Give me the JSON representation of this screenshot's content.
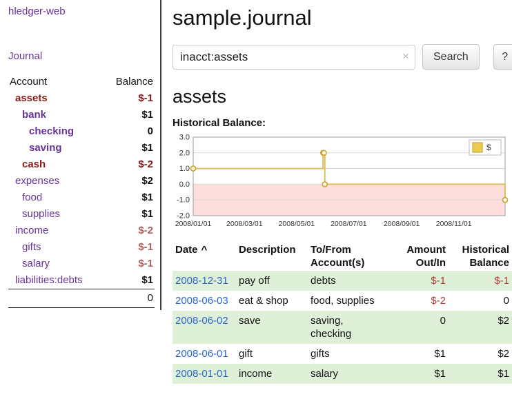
{
  "colors": {
    "purple": "#663399",
    "dark_red": "#8b1a1a",
    "soft_red": "#b05c5c",
    "amount_red": "#b23a3a",
    "link_blue": "#2a66cc",
    "row_green": "#dff0d8",
    "chart_line": "#ddc05a",
    "chart_marker": "#c9a227",
    "chart_swatch": "#eccb4e",
    "chart_neg_fill": "#ffdede"
  },
  "app": {
    "title": "hledger-web"
  },
  "sidebar": {
    "journal_label": "Journal",
    "headers": {
      "account": "Account",
      "balance": "Balance"
    },
    "rows": [
      {
        "account": "assets",
        "balance": "$-1",
        "indent": 0,
        "bold": true,
        "negative": "strong"
      },
      {
        "account": "bank",
        "balance": "$1",
        "indent": 1,
        "bold": true,
        "negative": null
      },
      {
        "account": "checking",
        "balance": "0",
        "indent": 2,
        "bold": true,
        "negative": null
      },
      {
        "account": "saving",
        "balance": "$1",
        "indent": 2,
        "bold": true,
        "negative": null
      },
      {
        "account": "cash",
        "balance": "$-2",
        "indent": 1,
        "bold": true,
        "negative": "strong"
      },
      {
        "account": "expenses",
        "balance": "$2",
        "indent": 0,
        "bold": false,
        "negative": null
      },
      {
        "account": "food",
        "balance": "$1",
        "indent": 1,
        "bold": false,
        "negative": null
      },
      {
        "account": "supplies",
        "balance": "$1",
        "indent": 1,
        "bold": false,
        "negative": null
      },
      {
        "account": "income",
        "balance": "$-2",
        "indent": 0,
        "bold": false,
        "negative": "soft"
      },
      {
        "account": "gifts",
        "balance": "$-1",
        "indent": 1,
        "bold": false,
        "negative": "soft"
      },
      {
        "account": "salary",
        "balance": "$-1",
        "indent": 1,
        "bold": false,
        "negative": "soft"
      },
      {
        "account": "liabilities:debts",
        "balance": "$1",
        "indent": 0,
        "bold": false,
        "negative": null
      }
    ],
    "total": "0"
  },
  "main": {
    "title": "sample.journal",
    "search": {
      "value": "inacct:assets",
      "clear_icon": "×",
      "button_label": "Search",
      "help_label": "?"
    },
    "section_title": "assets",
    "chart_label": "Historical Balance:"
  },
  "chart_data": {
    "type": "line",
    "step": true,
    "title": "Historical Balance",
    "series": [
      {
        "name": "$",
        "points": [
          [
            "2008-01-01",
            1
          ],
          [
            "2008-06-01",
            2
          ],
          [
            "2008-06-02",
            2
          ],
          [
            "2008-06-03",
            0
          ],
          [
            "2008-12-31",
            -1
          ]
        ]
      }
    ],
    "x_range": [
      "2008-01-01",
      "2008-12-31"
    ],
    "x_ticks": [
      "2008/01/01",
      "2008/03/01",
      "2008/05/01",
      "2008/07/01",
      "2008/09/01",
      "2008/11/01"
    ],
    "y_ticks": [
      3.0,
      2.0,
      1.0,
      0.0,
      -1.0,
      -2.0
    ],
    "ylim": [
      -2.0,
      3.0
    ],
    "grid": true,
    "negative_region_fill": true,
    "legend": {
      "position": "top-right",
      "entries": [
        "$"
      ]
    }
  },
  "register": {
    "sort_icon": "^",
    "headers": [
      {
        "id": "date",
        "label": "Date",
        "align": "left",
        "sorted": true,
        "sortable": true
      },
      {
        "id": "description",
        "label": "Description",
        "align": "left",
        "sorted": false,
        "sortable": false
      },
      {
        "id": "account",
        "label": "To/From Account(s)",
        "align": "left",
        "sorted": false,
        "sortable": false
      },
      {
        "id": "amount",
        "label": "Amount Out/In",
        "align": "right",
        "sorted": false,
        "sortable": false
      },
      {
        "id": "balance",
        "label": "Historical Balance",
        "align": "right",
        "sorted": false,
        "sortable": false
      }
    ],
    "rows": [
      {
        "date": "2008-12-31",
        "description": "pay off",
        "account": "debts",
        "amount": "$-1",
        "balance": "$-1"
      },
      {
        "date": "2008-06-03",
        "description": "eat & shop",
        "account": "food, supplies",
        "amount": "$-2",
        "balance": "0"
      },
      {
        "date": "2008-06-02",
        "description": "save",
        "account": "saving, checking",
        "amount": "0",
        "balance": "$2"
      },
      {
        "date": "2008-06-01",
        "description": "gift",
        "account": "gifts",
        "amount": "$1",
        "balance": "$2"
      },
      {
        "date": "2008-01-01",
        "description": "income",
        "account": "salary",
        "amount": "$1",
        "balance": "$1"
      }
    ]
  }
}
